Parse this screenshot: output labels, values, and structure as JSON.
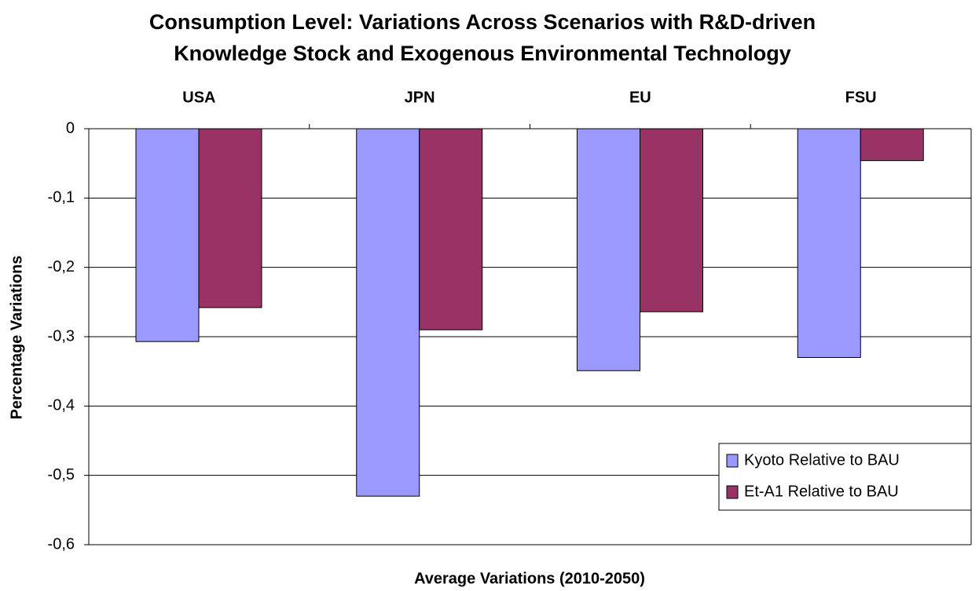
{
  "chart_data": {
    "type": "bar",
    "title": "Consumption Level: Variations Across Scenarios with R&D-driven",
    "subtitle": "Knowledge Stock and Exogenous Environmental Technology",
    "x_label": "Average Variations (2010-2050)",
    "y_label": "Percentage Variations",
    "categories": [
      "USA",
      "JPN",
      "EU",
      "FSU"
    ],
    "series": [
      {
        "name": "Kyoto Relative to BAU",
        "color": "#9999ff",
        "values": [
          -0.307,
          -0.53,
          -0.349,
          -0.33
        ]
      },
      {
        "name": "Et-A1 Relative to BAU",
        "color": "#993366",
        "values": [
          -0.258,
          -0.29,
          -0.264,
          -0.046
        ]
      }
    ],
    "ylim": [
      -0.6,
      0
    ],
    "yticks": [
      {
        "value": -0.6,
        "label": "-0,6"
      },
      {
        "value": -0.5,
        "label": "-0,5"
      },
      {
        "value": -0.4,
        "label": "-0,4"
      },
      {
        "value": -0.3,
        "label": "-0,3"
      },
      {
        "value": -0.2,
        "label": "-0,2"
      },
      {
        "value": -0.1,
        "label": "-0,1"
      },
      0
    ],
    "grid": true,
    "legend_position": "lower right"
  }
}
